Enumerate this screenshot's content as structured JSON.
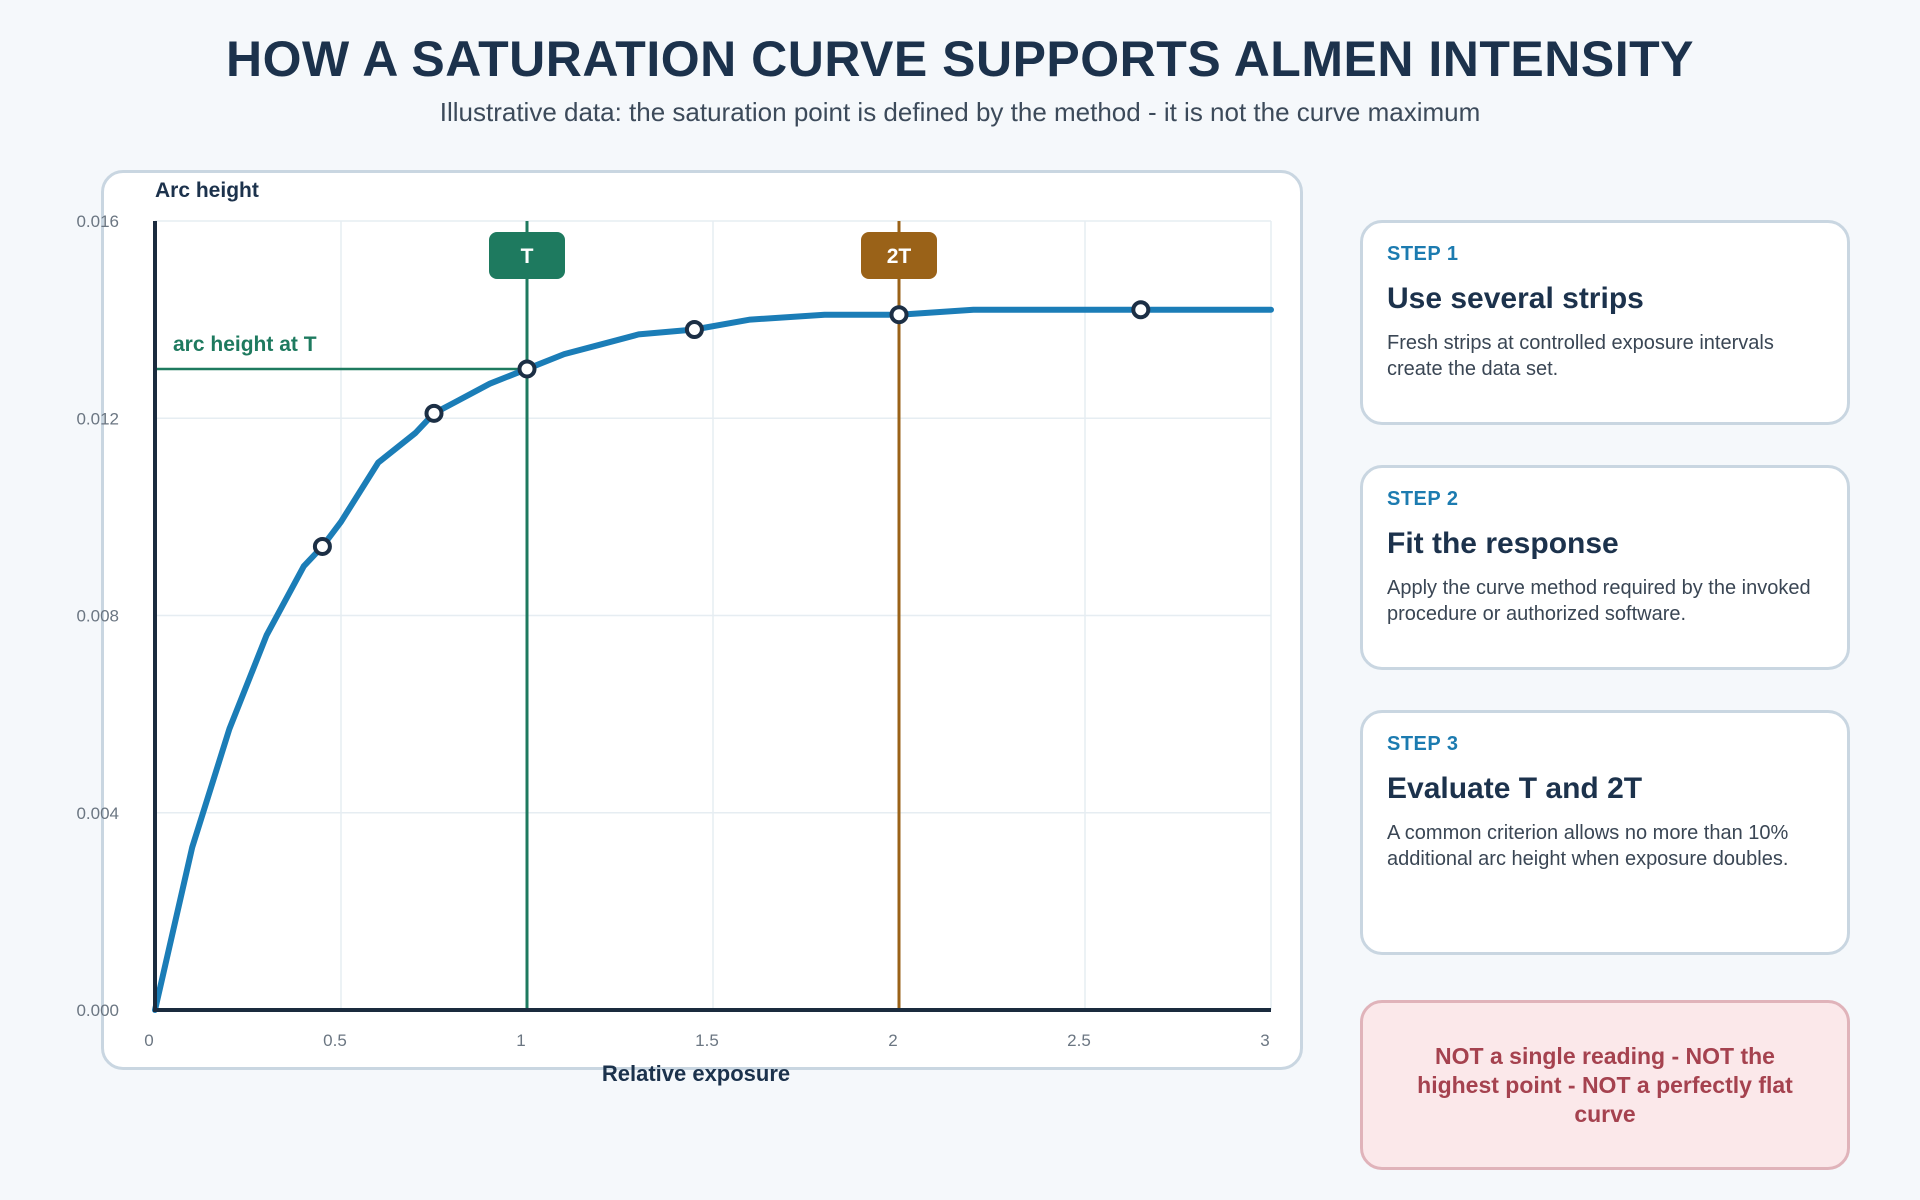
{
  "page": {
    "title": "HOW A SATURATION CURVE SUPPORTS ALMEN INTENSITY",
    "subtitle": "Illustrative data: the saturation point is defined by the method - it is not the curve maximum"
  },
  "chart_data": {
    "type": "line",
    "title": "",
    "xlabel": "Relative exposure",
    "ylabel": "Arc height",
    "xlim": [
      0,
      3
    ],
    "ylim": [
      0,
      0.016
    ],
    "x_ticks": [
      0,
      0.5,
      1,
      1.5,
      2,
      2.5,
      3
    ],
    "x_tick_labels": [
      "0",
      "0.5",
      "1",
      "1.5",
      "2",
      "2.5",
      "3"
    ],
    "y_ticks": [
      0,
      0.004,
      0.008,
      0.012,
      0.016
    ],
    "y_tick_labels": [
      "0.000",
      "0.004",
      "0.008",
      "0.012",
      "0.016"
    ],
    "grid": true,
    "series": [
      {
        "kind": "fitted-curve",
        "x": [
          0,
          0.1,
          0.2,
          0.3,
          0.4,
          0.45,
          0.5,
          0.6,
          0.7,
          0.75,
          0.8,
          0.9,
          1,
          1.1,
          1.2,
          1.3,
          1.45,
          1.6,
          1.8,
          2,
          2.2,
          2.4,
          2.65,
          2.8,
          3
        ],
        "y": [
          0,
          0.0033,
          0.0057,
          0.0076,
          0.009,
          0.0094,
          0.0099,
          0.0111,
          0.0117,
          0.0121,
          0.0123,
          0.0127,
          0.013,
          0.0133,
          0.0135,
          0.0137,
          0.0138,
          0.014,
          0.0141,
          0.0141,
          0.0142,
          0.0142,
          0.0142,
          0.0142,
          0.0142
        ],
        "color": "#1b7db7"
      },
      {
        "kind": "measured-points",
        "x": [
          0.45,
          0.75,
          1.0,
          1.45,
          2.0,
          2.65
        ],
        "y": [
          0.0094,
          0.0121,
          0.013,
          0.0138,
          0.0141,
          0.0142
        ],
        "color": "#1c2f45"
      }
    ],
    "markers": [
      {
        "label": "T",
        "x": 1.0,
        "color": "#1e7a5f"
      },
      {
        "label": "2T",
        "x": 2.0,
        "color": "#9a6218"
      }
    ],
    "annotation": {
      "label": "arc height at T",
      "y": 0.013,
      "x_end": 1.0,
      "color": "#1e7a5f"
    }
  },
  "steps": [
    {
      "step": "STEP 1",
      "heading": "Use several strips",
      "body": "Fresh strips at controlled exposure intervals create the data set."
    },
    {
      "step": "STEP 2",
      "heading": "Fit the response",
      "body": "Apply the curve method required by the invoked procedure or authorized software."
    },
    {
      "step": "STEP 3",
      "heading": "Evaluate T and 2T",
      "body": "A common criterion allows no more than 10% additional arc height when exposure doubles."
    }
  ],
  "warning": {
    "text": "NOT a single reading - NOT the highest point - NOT a perfectly flat curve"
  }
}
